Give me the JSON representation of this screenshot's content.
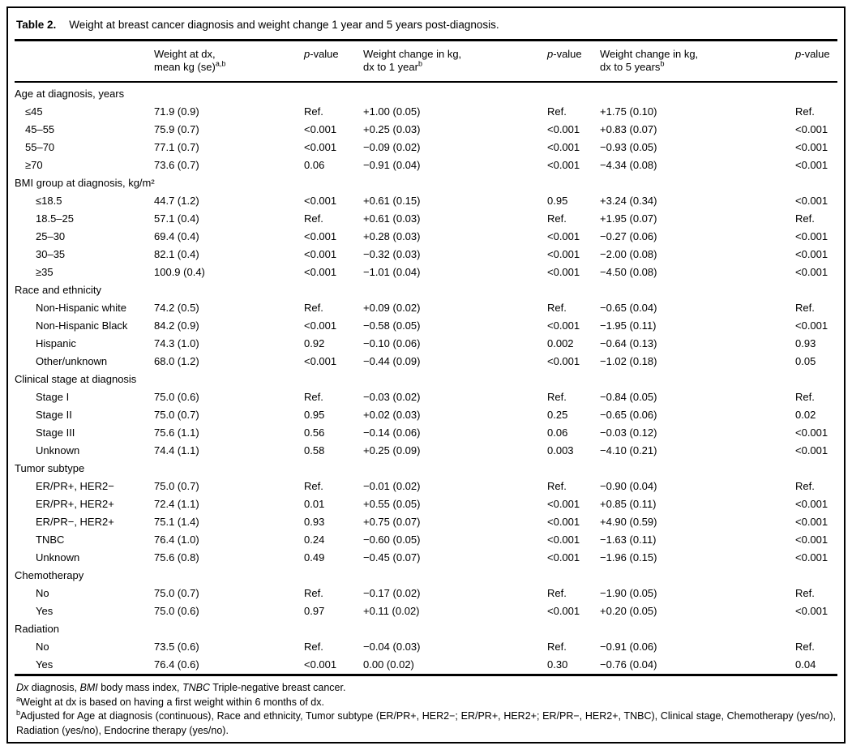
{
  "colors": {
    "text": "#000000",
    "background": "#ffffff",
    "rule": "#000000"
  },
  "title": {
    "label": "Table 2.",
    "text": "Weight at breast cancer diagnosis and weight change 1 year and 5 years post-diagnosis."
  },
  "columns": {
    "weight_dx": {
      "line1": "Weight at dx,",
      "line2": "mean kg (se)",
      "sup": "a,b"
    },
    "p1": {
      "italic": "p",
      "rest": "-value"
    },
    "change_1yr": {
      "line1": "Weight change in kg,",
      "line2": "dx to 1 year",
      "sup": "b"
    },
    "p2": {
      "italic": "p",
      "rest": "-value"
    },
    "change_5yr": {
      "line1": "Weight change in kg,",
      "line2": "dx to 5 years",
      "sup": "b"
    },
    "p3": {
      "italic": "p",
      "rest": "-value"
    }
  },
  "sections": [
    {
      "header": "Age at diagnosis, years",
      "indent": "indent-sm",
      "rows": [
        [
          "≤45",
          "71.9 (0.9)",
          "Ref.",
          "+1.00 (0.05)",
          "Ref.",
          "+1.75 (0.10)",
          "Ref."
        ],
        [
          "45–55",
          "75.9 (0.7)",
          "<0.001",
          "+0.25 (0.03)",
          "<0.001",
          "+0.83 (0.07)",
          "<0.001"
        ],
        [
          "55–70",
          "77.1 (0.7)",
          "<0.001",
          "−0.09 (0.02)",
          "<0.001",
          "−0.93 (0.05)",
          "<0.001"
        ],
        [
          "≥70",
          "73.6 (0.7)",
          "0.06",
          "−0.91 (0.04)",
          "<0.001",
          "−4.34 (0.08)",
          "<0.001"
        ]
      ]
    },
    {
      "header": "BMI group at diagnosis, kg/m²",
      "indent": "indent-lg",
      "rows": [
        [
          "≤18.5",
          "44.7 (1.2)",
          "<0.001",
          "+0.61 (0.15)",
          "0.95",
          "+3.24 (0.34)",
          "<0.001"
        ],
        [
          "18.5–25",
          "57.1 (0.4)",
          "Ref.",
          "+0.61 (0.03)",
          "Ref.",
          "+1.95 (0.07)",
          "Ref."
        ],
        [
          "25–30",
          "69.4 (0.4)",
          "<0.001",
          "+0.28 (0.03)",
          "<0.001",
          "−0.27 (0.06)",
          "<0.001"
        ],
        [
          "30–35",
          "82.1 (0.4)",
          "<0.001",
          "−0.32 (0.03)",
          "<0.001",
          "−2.00 (0.08)",
          "<0.001"
        ],
        [
          "≥35",
          "100.9 (0.4)",
          "<0.001",
          "−1.01 (0.04)",
          "<0.001",
          "−4.50 (0.08)",
          "<0.001"
        ]
      ]
    },
    {
      "header": "Race and ethnicity",
      "indent": "indent-lg",
      "rows": [
        [
          "Non-Hispanic white",
          "74.2 (0.5)",
          "Ref.",
          "+0.09 (0.02)",
          "Ref.",
          "−0.65 (0.04)",
          "Ref."
        ],
        [
          "Non-Hispanic Black",
          "84.2 (0.9)",
          "<0.001",
          "−0.58 (0.05)",
          "<0.001",
          "−1.95 (0.11)",
          "<0.001"
        ],
        [
          "Hispanic",
          "74.3 (1.0)",
          "0.92",
          "−0.10 (0.06)",
          "0.002",
          "−0.64 (0.13)",
          "0.93"
        ],
        [
          "Other/unknown",
          "68.0 (1.2)",
          "<0.001",
          "−0.44 (0.09)",
          "<0.001",
          "−1.02 (0.18)",
          "0.05"
        ]
      ]
    },
    {
      "header": "Clinical stage at diagnosis",
      "indent": "indent-lg",
      "rows": [
        [
          "Stage I",
          "75.0 (0.6)",
          "Ref.",
          "−0.03 (0.02)",
          "Ref.",
          "−0.84 (0.05)",
          "Ref."
        ],
        [
          "Stage II",
          "75.0 (0.7)",
          "0.95",
          "+0.02 (0.03)",
          "0.25",
          "−0.65 (0.06)",
          "0.02"
        ],
        [
          "Stage III",
          "75.6 (1.1)",
          "0.56",
          "−0.14 (0.06)",
          "0.06",
          "−0.03 (0.12)",
          "<0.001"
        ],
        [
          "Unknown",
          "74.4 (1.1)",
          "0.58",
          "+0.25 (0.09)",
          "0.003",
          "−4.10 (0.21)",
          "<0.001"
        ]
      ]
    },
    {
      "header": "Tumor subtype",
      "indent": "indent-lg",
      "rows": [
        [
          "ER/PR+, HER2−",
          "75.0 (0.7)",
          "Ref.",
          "−0.01 (0.02)",
          "Ref.",
          "−0.90 (0.04)",
          "Ref."
        ],
        [
          "ER/PR+, HER2+",
          "72.4 (1.1)",
          "0.01",
          "+0.55 (0.05)",
          "<0.001",
          "+0.85 (0.11)",
          "<0.001"
        ],
        [
          "ER/PR−, HER2+",
          "75.1 (1.4)",
          "0.93",
          "+0.75 (0.07)",
          "<0.001",
          "+4.90 (0.59)",
          "<0.001"
        ],
        [
          "TNBC",
          "76.4 (1.0)",
          "0.24",
          "−0.60 (0.05)",
          "<0.001",
          "−1.63 (0.11)",
          "<0.001"
        ],
        [
          "Unknown",
          "75.6 (0.8)",
          "0.49",
          "−0.45 (0.07)",
          "<0.001",
          "−1.96 (0.15)",
          "<0.001"
        ]
      ]
    },
    {
      "header": "Chemotherapy",
      "indent": "indent-lg",
      "rows": [
        [
          "No",
          "75.0 (0.7)",
          "Ref.",
          "−0.17 (0.02)",
          "Ref.",
          "−1.90 (0.05)",
          "Ref."
        ],
        [
          "Yes",
          "75.0 (0.6)",
          "0.97",
          "+0.11 (0.02)",
          "<0.001",
          "+0.20 (0.05)",
          "<0.001"
        ]
      ]
    },
    {
      "header": "Radiation",
      "indent": "indent-lg",
      "rows": [
        [
          "No",
          "73.5 (0.6)",
          "Ref.",
          "−0.04 (0.03)",
          "Ref.",
          "−0.91 (0.06)",
          "Ref."
        ],
        [
          "Yes",
          "76.4 (0.6)",
          "<0.001",
          "0.00 (0.02)",
          "0.30",
          "−0.76 (0.04)",
          "0.04"
        ]
      ]
    }
  ],
  "footnotes": {
    "abbrev": [
      {
        "text": "Dx",
        "italic": true
      },
      {
        "text": " diagnosis, ",
        "italic": false
      },
      {
        "text": "BMI",
        "italic": true
      },
      {
        "text": " body mass index, ",
        "italic": false
      },
      {
        "text": "TNBC",
        "italic": true
      },
      {
        "text": " Triple-negative breast cancer.",
        "italic": false
      }
    ],
    "a_sup": "a",
    "a_text": "Weight at dx is based on having a first weight within 6 months of dx.",
    "b_sup": "b",
    "b_text": "Adjusted for Age at diagnosis (continuous), Race and ethnicity, Tumor subtype (ER/PR+, HER2−; ER/PR+, HER2+; ER/PR−, HER2+, TNBC), Clinical stage, Chemotherapy (yes/no), Radiation (yes/no), Endocrine therapy (yes/no)."
  }
}
